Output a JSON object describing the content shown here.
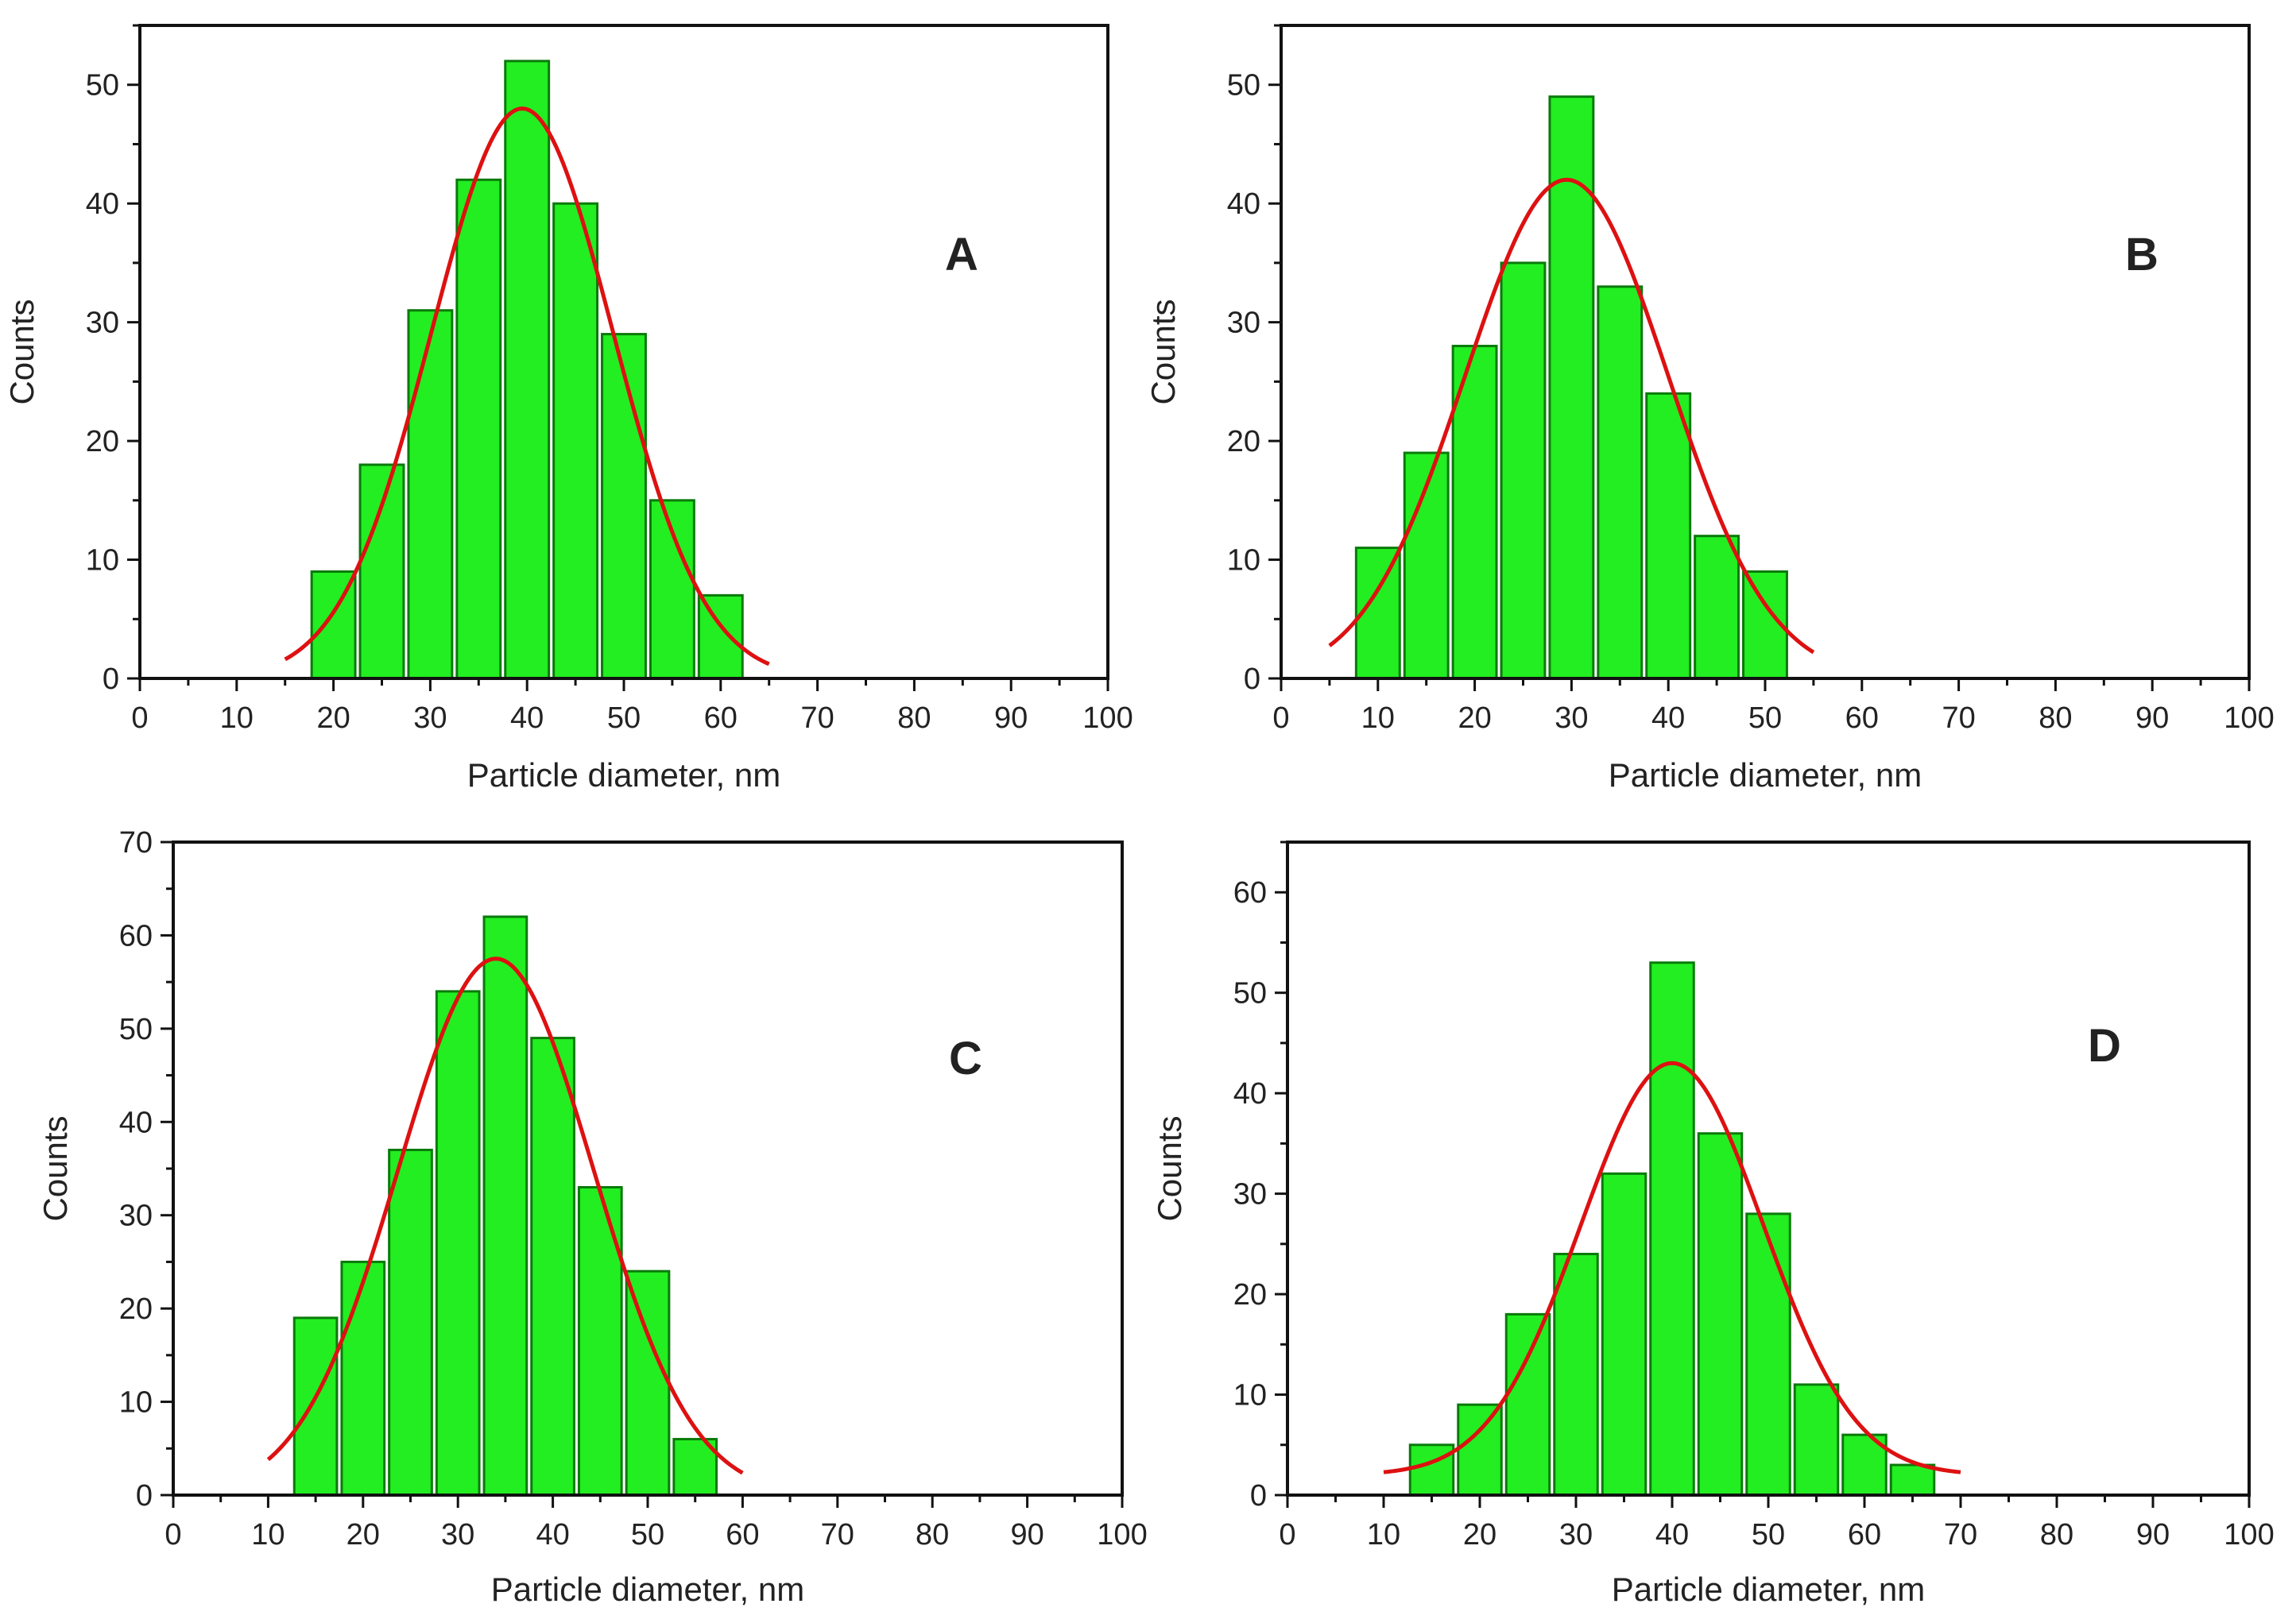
{
  "colors": {
    "bar_fill": "#22ee22",
    "bar_edge": "#0a7a0a",
    "fit_line": "#dd1111",
    "axis": "#111111"
  },
  "chart_data": [
    {
      "type": "bar",
      "panel": "A",
      "label": "A",
      "xlabel": "Particle diameter, nm",
      "ylabel": "Counts",
      "xlim": [
        0,
        100
      ],
      "ylim": [
        0,
        55
      ],
      "xticks": [
        "0",
        "10",
        "20",
        "30",
        "40",
        "50",
        "60",
        "70",
        "80",
        "90",
        "100"
      ],
      "yticks": [
        "0",
        "10",
        "20",
        "30",
        "40",
        "50"
      ],
      "bin_width": 5,
      "x": [
        20,
        25,
        30,
        35,
        40,
        45,
        50,
        55,
        60
      ],
      "values": [
        9,
        18,
        31,
        42,
        52,
        40,
        29,
        15,
        7
      ],
      "fit": {
        "type": "gaussian",
        "center": 39.5,
        "amplitude": 48,
        "sigma": 9.4,
        "range": [
          15,
          65
        ]
      }
    },
    {
      "type": "bar",
      "panel": "B",
      "label": "B",
      "xlabel": "Particle diameter, nm",
      "ylabel": "Counts",
      "xlim": [
        0,
        100
      ],
      "ylim": [
        0,
        55
      ],
      "xticks": [
        "0",
        "10",
        "20",
        "30",
        "40",
        "50",
        "60",
        "70",
        "80",
        "90",
        "100"
      ],
      "yticks": [
        "0",
        "10",
        "20",
        "30",
        "40",
        "50"
      ],
      "bin_width": 5,
      "x": [
        10,
        15,
        20,
        25,
        30,
        35,
        40,
        45,
        50
      ],
      "values": [
        11,
        19,
        28,
        35,
        49,
        33,
        24,
        12,
        9
      ],
      "fit": {
        "type": "gaussian",
        "center": 29.5,
        "amplitude": 42,
        "sigma": 10.5,
        "range": [
          5,
          55
        ]
      }
    },
    {
      "type": "bar",
      "panel": "C",
      "label": "C",
      "xlabel": "Particle diameter, nm",
      "ylabel": "Counts",
      "xlim": [
        0,
        100
      ],
      "ylim": [
        0,
        70
      ],
      "xticks": [
        "0",
        "10",
        "20",
        "30",
        "40",
        "50",
        "60",
        "70",
        "80",
        "90",
        "100"
      ],
      "yticks": [
        "0",
        "10",
        "20",
        "30",
        "40",
        "50",
        "60",
        "70"
      ],
      "bin_width": 5,
      "x": [
        15,
        20,
        25,
        30,
        35,
        40,
        45,
        50,
        55
      ],
      "values": [
        19,
        25,
        37,
        54,
        62,
        49,
        33,
        24,
        6
      ],
      "fit": {
        "type": "gaussian",
        "center": 34,
        "amplitude": 57.5,
        "sigma": 10.3,
        "range": [
          10,
          60
        ]
      }
    },
    {
      "type": "bar",
      "panel": "D",
      "label": "D",
      "xlabel": "Particle diameter, nm",
      "ylabel": "Counts",
      "xlim": [
        0,
        100
      ],
      "ylim": [
        0,
        65
      ],
      "xticks": [
        "0",
        "10",
        "20",
        "30",
        "40",
        "50",
        "60",
        "70",
        "80",
        "90",
        "100"
      ],
      "yticks": [
        "0",
        "10",
        "20",
        "30",
        "40",
        "50",
        "60"
      ],
      "bin_width": 5,
      "x": [
        15,
        20,
        25,
        30,
        35,
        40,
        45,
        50,
        55,
        60,
        65
      ],
      "values": [
        5,
        9,
        18,
        24,
        32,
        53,
        36,
        28,
        11,
        6,
        3
      ],
      "fit": {
        "type": "gaussian",
        "center": 40,
        "amplitude": 43,
        "sigma": 9.5,
        "offset": 2,
        "range": [
          10,
          70
        ]
      }
    }
  ]
}
